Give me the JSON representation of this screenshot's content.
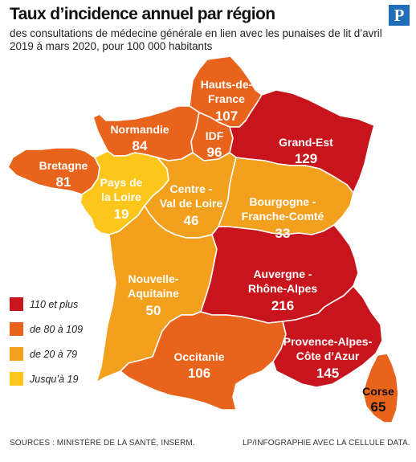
{
  "title": "Taux d’incidence annuel par région",
  "subtitle": "des consultations de médecine générale en lien avec les punaises de lit d’avril 2019 à mars 2020, pour 100 000 habitants",
  "logo_letter": "P",
  "colors": {
    "110_plus": "#c8141c",
    "80_109": "#e8641c",
    "20_79": "#f2a01e",
    "under_19": "#fcc71a"
  },
  "regions": {
    "hauts_de_france": {
      "name1": "Hauts-de-",
      "name2": "France",
      "value": "107"
    },
    "normandie": {
      "name": "Normandie",
      "value": "84"
    },
    "idf": {
      "name": "IDF",
      "value": "96"
    },
    "grand_est": {
      "name": "Grand-Est",
      "value": "129"
    },
    "bretagne": {
      "name": "Bretagne",
      "value": "81"
    },
    "pays_de_la_loire": {
      "name1": "Pays de",
      "name2": "la Loire",
      "value": "19"
    },
    "centre_val_de_loire": {
      "name1": "Centre -",
      "name2": "Val de Loire",
      "value": "46"
    },
    "bourgogne_franche_comte": {
      "name1": "Bourgogne -",
      "name2": "Franche-Comté",
      "value": "33"
    },
    "nouvelle_aquitaine": {
      "name1": "Nouvelle-",
      "name2": "Aquitaine",
      "value": "50"
    },
    "auvergne_rhone_alpes": {
      "name1": "Auvergne -",
      "name2": "Rhône-Alpes",
      "value": "216"
    },
    "occitanie": {
      "name": "Occitanie",
      "value": "106"
    },
    "paca": {
      "name1": "Provence-Alpes-",
      "name2": "Côte d’Azur",
      "value": "145"
    },
    "corse": {
      "name": "Corse",
      "value": "65"
    }
  },
  "legend": [
    {
      "label": "110 et plus",
      "color": "#c8141c"
    },
    {
      "label": "de 80 à 109",
      "color": "#e8641c"
    },
    {
      "label": "de 20 à 79",
      "color": "#f2a01e"
    },
    {
      "label": "Jusqu’à 19",
      "color": "#fcc71a"
    }
  ],
  "footer": {
    "sources": "SOURCES : MINISTÈRE DE LA SANTÉ, INSERM.",
    "credit": "LP/INFOGRAPHIE AVEC LA CELLULE DATA."
  }
}
